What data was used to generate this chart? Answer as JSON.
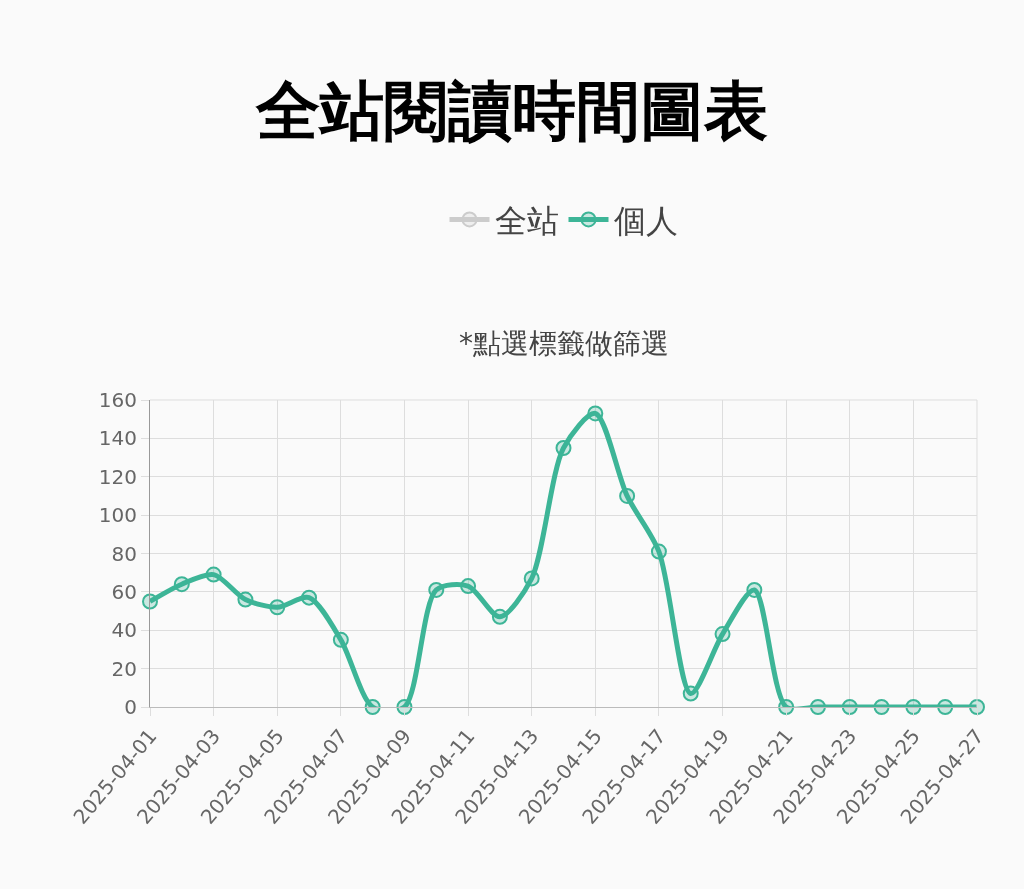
{
  "chart_data": {
    "type": "line",
    "title": "全站閱讀時間圖表",
    "subtitle": "*點選標籤做篩選",
    "x": [
      "2025-04-01",
      "2025-04-02",
      "2025-04-03",
      "2025-04-04",
      "2025-04-05",
      "2025-04-06",
      "2025-04-07",
      "2025-04-08",
      "2025-04-09",
      "2025-04-10",
      "2025-04-11",
      "2025-04-12",
      "2025-04-13",
      "2025-04-14",
      "2025-04-15",
      "2025-04-16",
      "2025-04-17",
      "2025-04-18",
      "2025-04-19",
      "2025-04-20",
      "2025-04-21",
      "2025-04-22",
      "2025-04-23",
      "2025-04-24",
      "2025-04-25",
      "2025-04-26",
      "2025-04-27"
    ],
    "series": [
      {
        "name": "全站",
        "color": "#cccccc",
        "values": [
          null,
          null,
          null,
          null,
          null,
          null,
          null,
          null,
          null,
          null,
          null,
          null,
          null,
          null,
          null,
          null,
          null,
          null,
          null,
          null,
          null,
          null,
          null,
          null,
          null,
          null,
          null
        ]
      },
      {
        "name": "個人",
        "color": "#3db597",
        "values": [
          55,
          64,
          69,
          56,
          52,
          57,
          35,
          0,
          0,
          61,
          63,
          47,
          67,
          135,
          153,
          110,
          81,
          7,
          38,
          61,
          0,
          0,
          0,
          0,
          0,
          0,
          0
        ]
      }
    ],
    "xlim": [
      "2025-04-01",
      "2025-04-27"
    ],
    "xticks": [
      "2025-04-01",
      "2025-04-03",
      "2025-04-05",
      "2025-04-07",
      "2025-04-09",
      "2025-04-11",
      "2025-04-13",
      "2025-04-15",
      "2025-04-17",
      "2025-04-19",
      "2025-04-21",
      "2025-04-23",
      "2025-04-25",
      "2025-04-27"
    ],
    "ylim": [
      0,
      160
    ],
    "yticks": [
      0,
      20,
      40,
      60,
      80,
      100,
      120,
      140,
      160
    ],
    "grid": true,
    "legend": "top",
    "marker": "circle",
    "line_style": "solid"
  }
}
